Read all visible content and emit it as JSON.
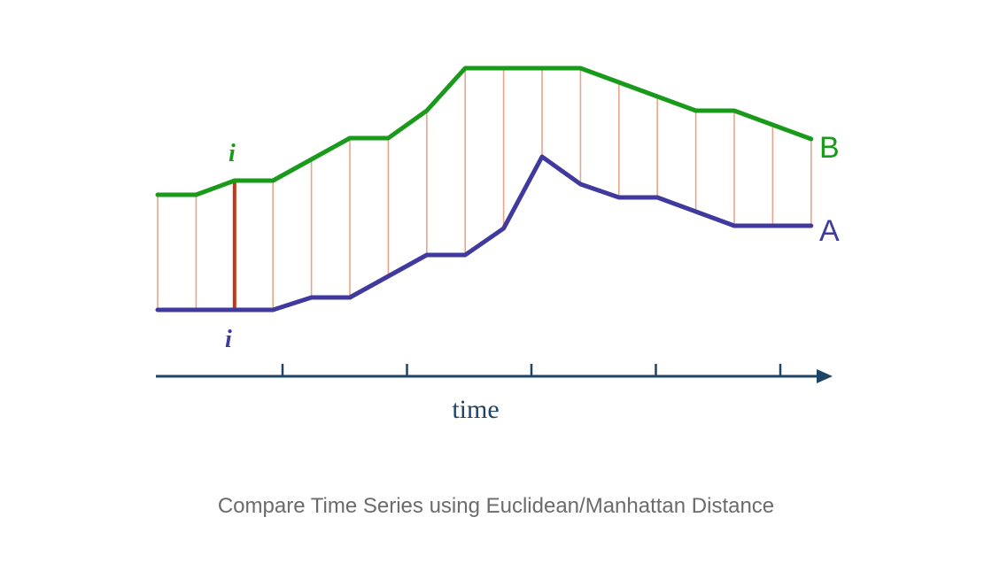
{
  "diagram": {
    "series_b": {
      "label": "B",
      "color": "#1a9a1a",
      "values": [
        220,
        220,
        204,
        204,
        180,
        156,
        156,
        125,
        77,
        77,
        77,
        77,
        93,
        109,
        125,
        125,
        141,
        157
      ]
    },
    "series_a": {
      "label": "A",
      "color": "#403a9e",
      "values": [
        350,
        350,
        350,
        350,
        336,
        336,
        312,
        288,
        288,
        258,
        177,
        208,
        223,
        223,
        239,
        255,
        255,
        255
      ]
    },
    "connector_color": "#e9a58a",
    "highlight_color": "#c0391b",
    "highlight_index": 2,
    "index_label": "i",
    "axis": {
      "label": "time",
      "color": "#1e4468",
      "tick_count": 5
    }
  },
  "caption": "Compare Time Series using Euclidean/Manhattan Distance"
}
